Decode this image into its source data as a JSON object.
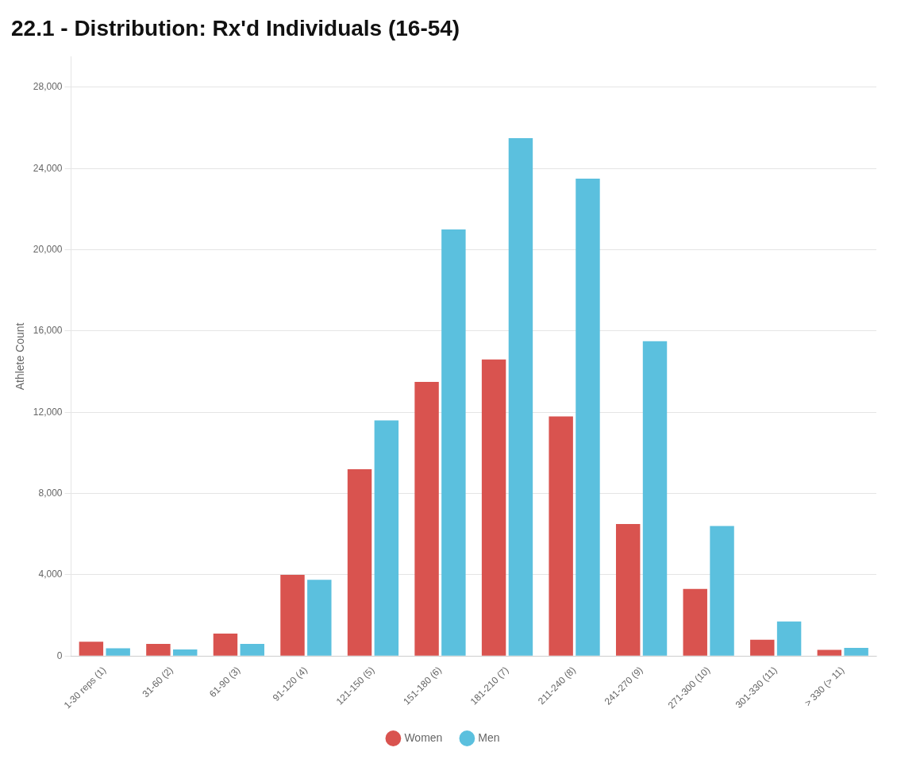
{
  "chart_data": {
    "type": "bar",
    "title": "22.1 - Distribution: Rx'd Individuals (16-54)",
    "ylabel": "Athlete Count",
    "categories": [
      "1-30 reps (1)",
      "31-60 (2)",
      "61-90 (3)",
      "91-120 (4)",
      "121-150 (5)",
      "151-180 (6)",
      "181-210 (7)",
      "211-240 (8)",
      "241-270 (9)",
      "271-300 (10)",
      "301-330 (11)",
      "> 330 (> 11)"
    ],
    "series": [
      {
        "name": "Women",
        "color": "#d9534f",
        "values": [
          700,
          600,
          1100,
          4000,
          9200,
          13500,
          14600,
          11800,
          6500,
          3300,
          800,
          300
        ]
      },
      {
        "name": "Men",
        "color": "#5bc0de",
        "values": [
          380,
          320,
          600,
          3750,
          11600,
          21000,
          25500,
          23500,
          15500,
          6400,
          1700,
          400
        ]
      }
    ],
    "ylim": [
      0,
      29500
    ],
    "yticks": [
      0,
      {
        "value": 4000,
        "label": "4,000"
      },
      {
        "value": 8000,
        "label": "8,000"
      },
      {
        "value": 12000,
        "label": "12,000"
      },
      {
        "value": 16000,
        "label": "16,000"
      },
      {
        "value": 20000,
        "label": "20,000"
      },
      {
        "value": 24000,
        "label": "24,000"
      },
      {
        "value": 28000,
        "label": "28,000"
      }
    ],
    "grid": true,
    "legend": "bottom"
  }
}
